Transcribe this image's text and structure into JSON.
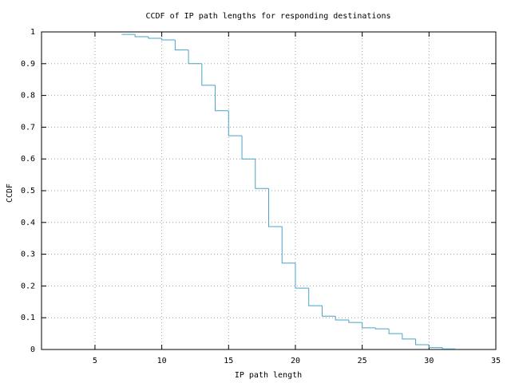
{
  "chart_data": {
    "type": "step",
    "title": "CCDF of IP path lengths for responding destinations",
    "x_label": "IP path length",
    "y_label": "CCDF",
    "x": [
      7,
      8,
      9,
      10,
      11,
      12,
      13,
      14,
      15,
      16,
      17,
      18,
      19,
      20,
      21,
      22,
      23,
      24,
      25,
      26,
      27,
      28,
      29,
      30,
      31,
      32
    ],
    "series": [
      {
        "color": "#4aa3c8",
        "values": [
          0.992,
          0.985,
          0.98,
          0.975,
          0.943,
          0.9,
          0.832,
          0.752,
          0.673,
          0.6,
          0.507,
          0.387,
          0.272,
          0.193,
          0.138,
          0.105,
          0.093,
          0.085,
          0.068,
          0.065,
          0.05,
          0.033,
          0.015,
          0.006,
          0.002,
          0
        ]
      }
    ],
    "xlim": [
      1,
      35
    ],
    "xticks": [
      5,
      10,
      15,
      20,
      25,
      30,
      35
    ],
    "ylim": [
      0,
      1
    ],
    "yticks": [
      0,
      0.1,
      0.2,
      0.3,
      0.4,
      0.5,
      0.6,
      0.7,
      0.8,
      0.9,
      1
    ],
    "grid": true
  }
}
